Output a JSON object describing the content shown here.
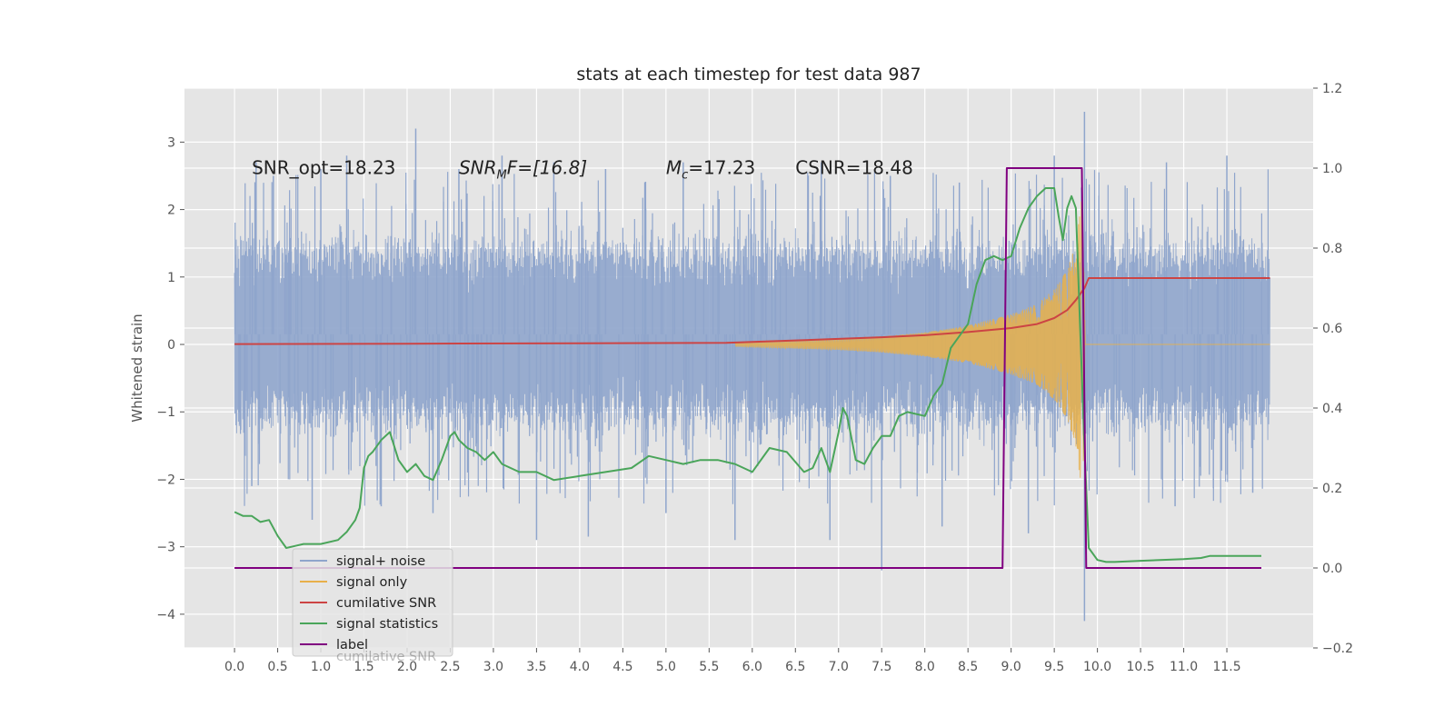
{
  "chart_data": {
    "type": "line",
    "title": "stats at each timestep for test data 987",
    "ylabel": "Whitened strain",
    "xlim": [
      -0.58,
      12.5
    ],
    "ylim": [
      -4.5,
      3.8
    ],
    "y2lim": [
      -0.2,
      1.2
    ],
    "x_ticks": [
      0.0,
      0.5,
      1.0,
      1.5,
      2.0,
      2.5,
      3.0,
      3.5,
      4.0,
      4.5,
      5.0,
      5.5,
      6.0,
      6.5,
      7.0,
      7.5,
      8.0,
      8.5,
      9.0,
      9.5,
      10.0,
      10.5,
      11.0,
      11.5
    ],
    "x_tick_labels": [
      "0.0",
      "0.5",
      "1.0",
      "1.5",
      "2.0",
      "2.5",
      "3.0",
      "3.5",
      "4.0",
      "4.5",
      "5.0",
      "5.5",
      "6.0",
      "6.5",
      "7.0",
      "7.5",
      "8.0",
      "8.5",
      "9.0",
      "9.5",
      "10.0",
      "10.5",
      "11.0",
      "11.5"
    ],
    "y_ticks": [
      3,
      2,
      1,
      0,
      -1,
      -2,
      -3,
      -4
    ],
    "y_tick_labels": [
      "3",
      "2",
      "1",
      "0",
      "−1",
      "−2",
      "−3",
      "−4"
    ],
    "y2_ticks": [
      1.2,
      1.0,
      0.8,
      0.6,
      0.4,
      0.2,
      0.0,
      -0.2
    ],
    "y2_tick_labels": [
      "1.2",
      "1.0",
      "0.8",
      "0.6",
      "0.4",
      "0.2",
      "0.0",
      "−0.2"
    ],
    "grid": true,
    "legend_position": "lower-left",
    "annotations": [
      {
        "text": "SNR_opt=18.23",
        "x": 0.2,
        "y": 2.62
      },
      {
        "text": "SNR",
        "sub": "M",
        "rest": "F=[16.8]",
        "italic": true,
        "x": 2.6,
        "y": 2.62
      },
      {
        "text": "M",
        "sub": "c",
        "rest": "=17.23",
        "italic": true,
        "x": 5.0,
        "y": 2.62
      },
      {
        "text": "CSNR=18.48",
        "x": 6.5,
        "y": 2.62
      }
    ],
    "series": [
      {
        "name": "signal+ noise",
        "axis": "left",
        "style": "noise",
        "color": "#8fa5cc",
        "x_range": [
          0.0,
          12.0
        ],
        "band_core": [
          -1.0,
          1.3
        ],
        "peak_positive": [
          [
            0.25,
            2.7
          ],
          [
            0.45,
            2.5
          ],
          [
            1.0,
            2.6
          ],
          [
            1.3,
            2.8
          ],
          [
            2.1,
            3.2
          ],
          [
            2.6,
            2.6
          ],
          [
            3.1,
            2.8
          ],
          [
            3.7,
            2.7
          ],
          [
            4.3,
            2.6
          ],
          [
            5.2,
            2.7
          ],
          [
            6.0,
            1.0
          ],
          [
            6.8,
            2.7
          ],
          [
            7.6,
            2.5
          ],
          [
            8.4,
            2.4
          ],
          [
            9.5,
            2.8
          ],
          [
            9.85,
            3.45
          ],
          [
            10.8,
            2.7
          ],
          [
            11.5,
            2.8
          ]
        ],
        "peak_negative": [
          [
            0.2,
            -2.1
          ],
          [
            0.9,
            -2.6
          ],
          [
            1.7,
            -2.4
          ],
          [
            2.3,
            -2.5
          ],
          [
            3.5,
            -2.9
          ],
          [
            4.1,
            -2.85
          ],
          [
            5.0,
            -2.5
          ],
          [
            5.8,
            -2.9
          ],
          [
            6.0,
            -1.3
          ],
          [
            6.9,
            -2.9
          ],
          [
            7.5,
            -3.35
          ],
          [
            8.2,
            -2.7
          ],
          [
            9.2,
            -2.8
          ],
          [
            9.85,
            -4.1
          ],
          [
            10.9,
            -2.4
          ],
          [
            11.8,
            -2.2
          ]
        ]
      },
      {
        "name": "signal only",
        "axis": "left",
        "style": "chirp",
        "color": "#e8b04a",
        "x": [
          5.8,
          6.5,
          7.0,
          7.5,
          8.0,
          8.5,
          9.0,
          9.3,
          9.5,
          9.65,
          9.75,
          9.83,
          9.86,
          12.0
        ],
        "amplitude": [
          0.03,
          0.06,
          0.08,
          0.12,
          0.18,
          0.28,
          0.45,
          0.6,
          0.82,
          1.1,
          1.5,
          2.3,
          0.0,
          0.0
        ]
      },
      {
        "name": "cumilative SNR",
        "axis": "right",
        "color": "#cc4444",
        "x": [
          0.0,
          2.0,
          4.0,
          5.7,
          6.5,
          7.0,
          7.5,
          8.0,
          8.5,
          9.0,
          9.3,
          9.5,
          9.65,
          9.75,
          9.85,
          9.9,
          12.0
        ],
        "y": [
          0.56,
          0.561,
          0.562,
          0.563,
          0.569,
          0.573,
          0.577,
          0.582,
          0.59,
          0.6,
          0.61,
          0.625,
          0.645,
          0.67,
          0.7,
          0.725,
          0.725
        ]
      },
      {
        "name": "signal statistics",
        "axis": "right",
        "color": "#4aa55a",
        "x": [
          0.0,
          0.1,
          0.2,
          0.3,
          0.4,
          0.5,
          0.6,
          0.7,
          0.8,
          1.0,
          1.2,
          1.3,
          1.4,
          1.45,
          1.5,
          1.55,
          1.6,
          1.7,
          1.8,
          1.9,
          2.0,
          2.1,
          2.2,
          2.3,
          2.4,
          2.5,
          2.55,
          2.6,
          2.7,
          2.8,
          2.9,
          3.0,
          3.1,
          3.3,
          3.5,
          3.7,
          4.0,
          4.3,
          4.6,
          4.8,
          5.0,
          5.2,
          5.4,
          5.6,
          5.8,
          6.0,
          6.2,
          6.4,
          6.6,
          6.7,
          6.8,
          6.9,
          7.0,
          7.05,
          7.1,
          7.2,
          7.3,
          7.4,
          7.5,
          7.6,
          7.7,
          7.8,
          8.0,
          8.1,
          8.2,
          8.3,
          8.4,
          8.5,
          8.6,
          8.7,
          8.8,
          8.9,
          9.0,
          9.1,
          9.2,
          9.3,
          9.4,
          9.5,
          9.55,
          9.6,
          9.65,
          9.7,
          9.75,
          9.8,
          9.85,
          9.9,
          10.0,
          10.1,
          10.2,
          10.5,
          11.0,
          11.2,
          11.3,
          11.5,
          11.7,
          11.8,
          11.9
        ],
        "y": [
          0.14,
          0.13,
          0.13,
          0.115,
          0.12,
          0.08,
          0.05,
          0.055,
          0.06,
          0.06,
          0.07,
          0.09,
          0.12,
          0.15,
          0.25,
          0.28,
          0.29,
          0.32,
          0.34,
          0.27,
          0.24,
          0.26,
          0.23,
          0.22,
          0.27,
          0.33,
          0.34,
          0.32,
          0.3,
          0.29,
          0.27,
          0.29,
          0.26,
          0.24,
          0.24,
          0.22,
          0.23,
          0.24,
          0.25,
          0.28,
          0.27,
          0.26,
          0.27,
          0.27,
          0.26,
          0.24,
          0.3,
          0.29,
          0.24,
          0.25,
          0.3,
          0.24,
          0.34,
          0.4,
          0.38,
          0.27,
          0.26,
          0.3,
          0.33,
          0.33,
          0.38,
          0.39,
          0.38,
          0.43,
          0.46,
          0.55,
          0.58,
          0.61,
          0.71,
          0.77,
          0.78,
          0.77,
          0.78,
          0.85,
          0.9,
          0.93,
          0.95,
          0.95,
          0.88,
          0.82,
          0.9,
          0.93,
          0.9,
          0.6,
          0.3,
          0.05,
          0.02,
          0.015,
          0.015,
          0.018,
          0.022,
          0.025,
          0.03,
          0.03,
          0.03,
          0.03,
          0.03
        ]
      },
      {
        "name": "label",
        "axis": "right",
        "color": "#800080",
        "x": [
          0.0,
          8.9,
          8.95,
          9.82,
          9.87,
          11.9
        ],
        "y": [
          0.0,
          0.0,
          1.0,
          1.0,
          0.0,
          0.0
        ]
      }
    ],
    "legend_overlap_text": "cumilative SNR"
  }
}
